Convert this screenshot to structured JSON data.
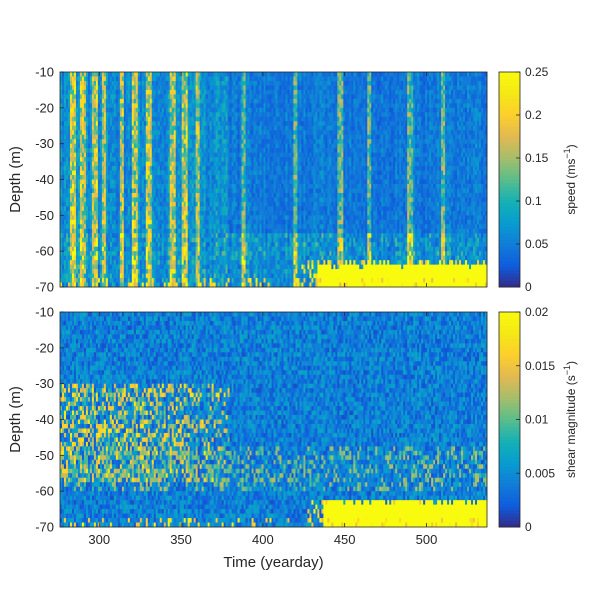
{
  "chart_data": [
    {
      "type": "heatmap",
      "ylabel": "Depth (m)",
      "xlim": [
        276,
        537
      ],
      "ylim": [
        -70,
        -10
      ],
      "x_ticks": [
        300,
        350,
        400,
        450,
        500
      ],
      "y_ticks": [
        -10,
        -20,
        -30,
        -40,
        -50,
        -60,
        -70
      ],
      "x_tick_labels": [
        "300",
        "350",
        "400",
        "450",
        "500"
      ],
      "y_tick_labels": [
        "-10",
        "-20",
        "-30",
        "-40",
        "-50",
        "-60",
        "-70"
      ],
      "colorbar": {
        "label_text": "speed (ms",
        "label_sup": "−1",
        "label_end": ")",
        "range": [
          0,
          0.25
        ],
        "ticks": [
          0,
          0.05,
          0.1,
          0.15,
          0.2,
          0.25
        ],
        "tick_labels": [
          "0",
          "0.05",
          "0.1",
          "0.15",
          "0.2",
          "0.25"
        ]
      },
      "colormap": "parula",
      "field_summary": {
        "background_level": 0.07,
        "bright_columns_yearday": [
          284,
          290,
          297,
          303,
          314,
          322,
          330,
          345,
          352,
          360,
          388,
          420,
          447,
          465,
          490,
          510
        ],
        "saturated_bottom_region": {
          "x_from": 433,
          "x_to": 537,
          "depth_from": -63,
          "depth_to": -70,
          "level": 0.25
        }
      }
    },
    {
      "type": "heatmap",
      "xlabel": "Time (yearday)",
      "ylabel": "Depth (m)",
      "xlim": [
        276,
        537
      ],
      "ylim": [
        -70,
        -10
      ],
      "x_ticks": [
        300,
        350,
        400,
        450,
        500
      ],
      "y_ticks": [
        -10,
        -20,
        -30,
        -40,
        -50,
        -60,
        -70
      ],
      "x_tick_labels": [
        "300",
        "350",
        "400",
        "450",
        "500"
      ],
      "y_tick_labels": [
        "-10",
        "-20",
        "-30",
        "-40",
        "-50",
        "-60",
        "-70"
      ],
      "colorbar": {
        "label_text": "shear magnitude (s",
        "label_sup": "−1",
        "label_end": ")",
        "range": [
          0,
          0.02
        ],
        "ticks": [
          0,
          0.005,
          0.01,
          0.015,
          0.02
        ],
        "tick_labels": [
          "0",
          "0.005",
          "0.01",
          "0.015",
          "0.02"
        ]
      },
      "colormap": "parula",
      "field_summary": {
        "background_level": 0.005,
        "high_shear_band": {
          "x_from": 276,
          "x_to": 380,
          "depth_from": -30,
          "depth_to": -58,
          "level": 0.017
        },
        "saturated_bottom_region": {
          "x_from": 437,
          "x_to": 537,
          "depth_from": -62,
          "depth_to": -70,
          "level": 0.02
        }
      }
    }
  ]
}
